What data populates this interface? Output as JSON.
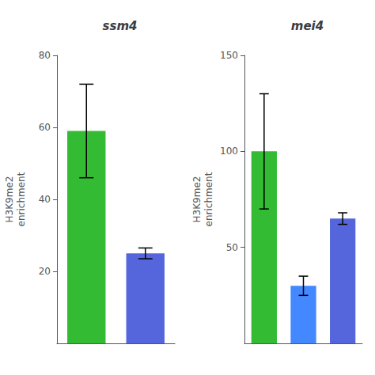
{
  "chart_data": [
    {
      "type": "bar",
      "title": "ssm4",
      "ylabel": "H3K9me2\nenrichment",
      "categories": [
        null,
        null
      ],
      "values": [
        59,
        25
      ],
      "colors": [
        "#33bb33",
        "#5566dd"
      ],
      "error_up": [
        13,
        1.5
      ],
      "error_dn": [
        13,
        1.5
      ],
      "ylim": [
        0,
        80
      ],
      "yticks": [
        20,
        40,
        60,
        80
      ],
      "grid": false,
      "tick_labels": "y"
    },
    {
      "type": "bar",
      "title": "mei4",
      "ylabel": "H3K9me2\nenrichment",
      "categories": [
        null,
        null,
        null
      ],
      "values": [
        100,
        30,
        65
      ],
      "colors": [
        "#33bb33",
        "#4488ff",
        "#5566dd"
      ],
      "error_up": [
        30,
        5,
        3
      ],
      "error_dn": [
        30,
        5,
        3
      ],
      "ylim": [
        0,
        150
      ],
      "yticks": [
        50,
        100,
        150
      ],
      "grid": false,
      "tick_labels": "y"
    }
  ]
}
